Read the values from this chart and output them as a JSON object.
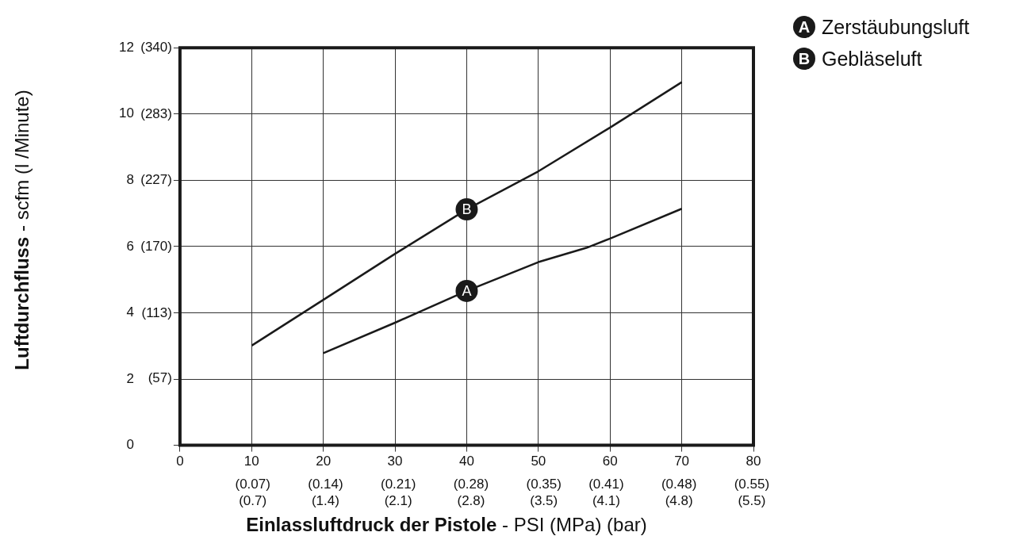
{
  "chart_data": {
    "type": "line",
    "xlabel": "Einlassluftdruck der Pistole - PSI (MPa) (bar)",
    "ylabel": "Luftdurchfluss - scfm (l /Minute)",
    "series": [
      {
        "name": "Zerstäubungsluft",
        "color": "#1a1a1a",
        "x": [
          20,
          30,
          40,
          50,
          56.7,
          60,
          70
        ],
        "values": [
          2.78,
          3.7,
          4.66,
          5.53,
          5.96,
          6.24,
          7.14
        ]
      },
      {
        "name": "Gebläseluft",
        "color": "#1a1a1a",
        "x": [
          10,
          20,
          30,
          40,
          50,
          60,
          70
        ],
        "values": [
          3.01,
          4.39,
          5.78,
          7.12,
          8.27,
          9.59,
          10.96
        ]
      }
    ],
    "annotations": [
      {
        "text": "A",
        "x": 40,
        "y": 4.66
      },
      {
        "text": "B",
        "x": 40,
        "y": 7.12
      },
      "(0.7)",
      "(1.4)",
      "(2.1)",
      "(2.8)",
      "(3.5)",
      "(4.1)",
      "(4.8)",
      "(5.5)"
    ],
    "xlim": [
      0,
      80
    ],
    "ylim": [
      0,
      12
    ],
    "xticks": [
      0,
      10,
      20,
      30,
      40,
      50,
      60,
      70,
      80
    ],
    "yticks": [
      0,
      2,
      4,
      6,
      8,
      10,
      12
    ],
    "x2lim": [
      0,
      0.5516
    ],
    "x2ticks": [
      {
        "value": 0.07,
        "label": "(0.07)"
      },
      {
        "value": 0.14,
        "label": "(0.14)"
      },
      {
        "value": 0.21,
        "label": "(0.21)"
      },
      {
        "value": 0.28,
        "label": "(0.28)"
      },
      {
        "value": 0.35,
        "label": "(0.35)"
      },
      {
        "value": 0.41,
        "label": "(0.41)"
      },
      {
        "value": 0.48,
        "label": "(0.48)"
      },
      {
        "value": 0.55,
        "label": "(0.55)"
      }
    ],
    "y2lim": [
      0,
      340
    ],
    "y2ticks": [
      {
        "value": 57,
        "label": "(57)"
      },
      {
        "value": 113,
        "label": "(113)"
      },
      {
        "value": 170,
        "label": "(170)"
      },
      {
        "value": 227,
        "label": "(227)"
      },
      {
        "value": 283,
        "label": "(283)"
      },
      {
        "value": 340,
        "label": "(340)"
      }
    ],
    "grid": true,
    "legend": "top right",
    "marker": "none",
    "line_style": "solid"
  }
}
